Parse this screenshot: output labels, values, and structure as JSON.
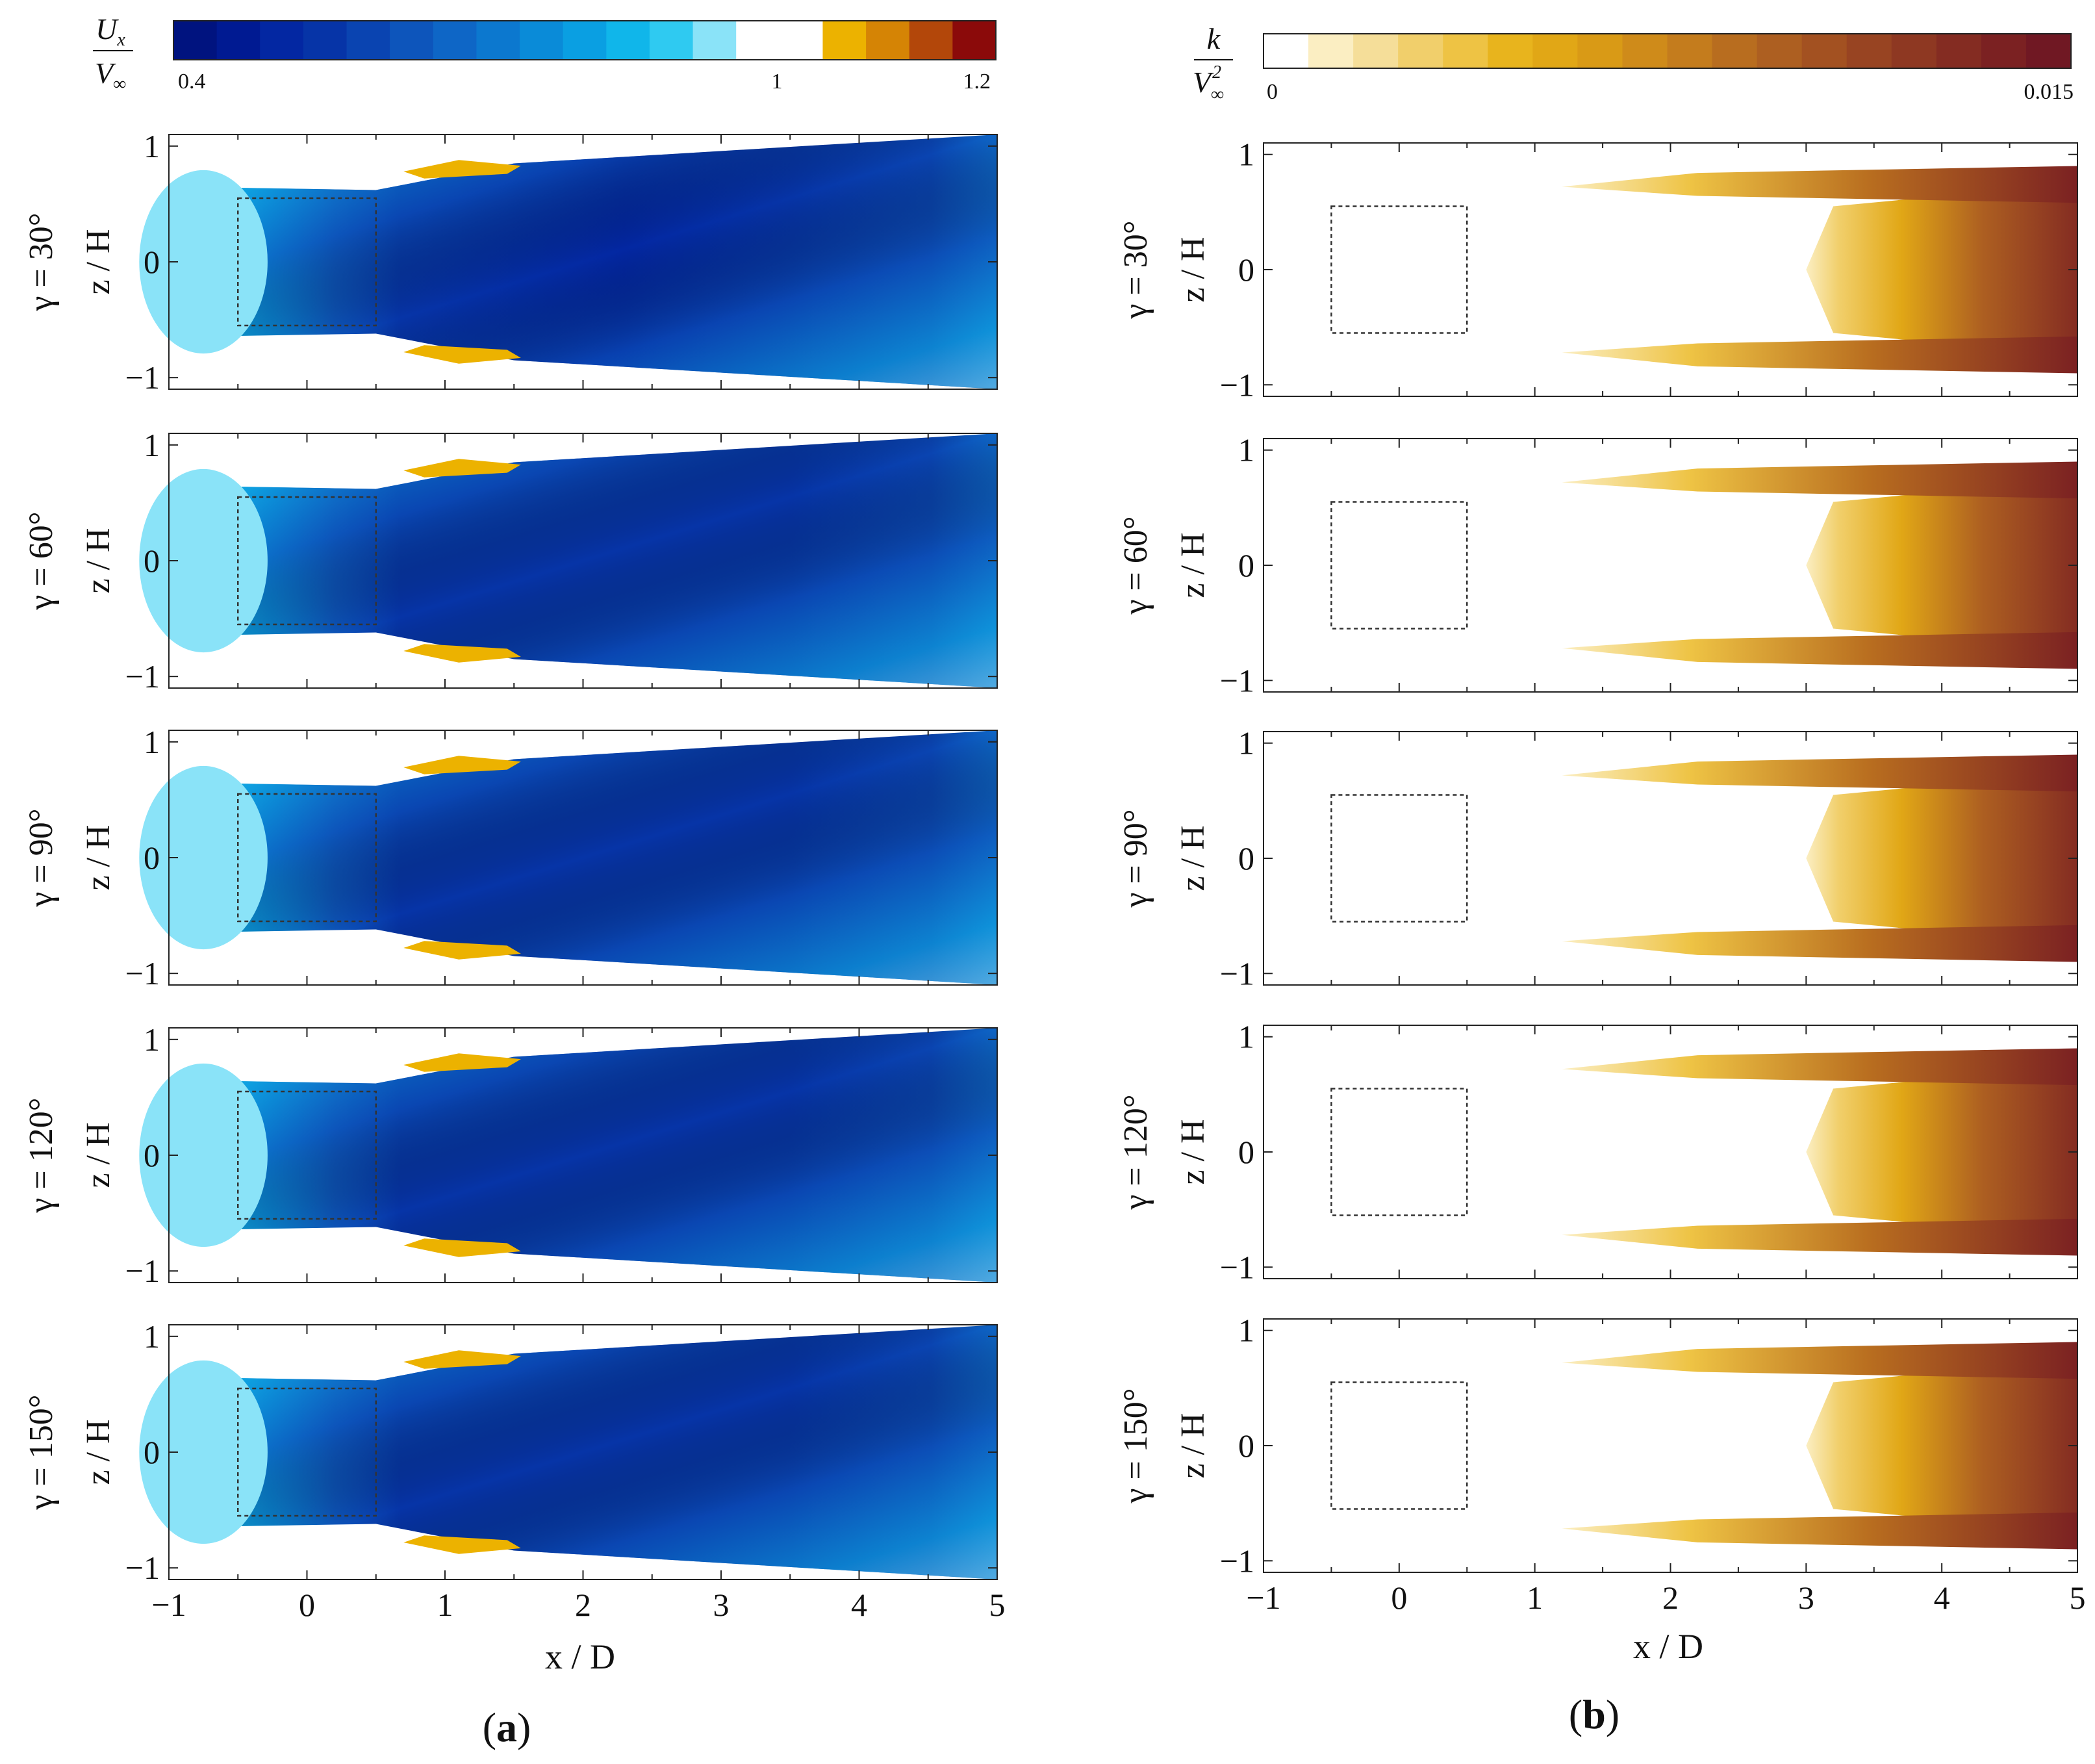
{
  "figure": {
    "panel_a_letter": "a",
    "panel_b_letter": "b",
    "open_paren": "(",
    "close_paren": ")"
  },
  "colorbars": {
    "a": {
      "num": "U",
      "num_sub": "x",
      "den": "V",
      "den_sub": "∞",
      "ticks": [
        "0.4",
        "1",
        "1.2"
      ],
      "colors": [
        "#00137f",
        "#001a92",
        "#0327a2",
        "#0634a7",
        "#0a44b1",
        "#0d55bb",
        "#0e66c6",
        "#0c78cf",
        "#0a8bd8",
        "#0a9fe2",
        "#10b6ea",
        "#2fcaf1",
        "#8ae3f8",
        "#ffffff",
        "#ffffff",
        "#ecb200",
        "#d58405",
        "#b3470a",
        "#8b0a0a"
      ]
    },
    "b": {
      "num": "k",
      "den": "V",
      "den_sup": "2",
      "den_sub": "∞",
      "ticks": [
        "0",
        "0.015"
      ],
      "colors": [
        "#ffffff",
        "#fbeec2",
        "#f5de99",
        "#f1cf6b",
        "#eec344",
        "#e8b41d",
        "#e1a716",
        "#d99a16",
        "#cf8b1a",
        "#c47c1d",
        "#b86d1f",
        "#ad5f21",
        "#a35121",
        "#984422",
        "#8e3822",
        "#842c22",
        "#7b2122",
        "#701823"
      ]
    }
  },
  "chart_data": [
    {
      "type": "heatmap",
      "panel": "a",
      "quantity": "Ux / V∞",
      "xlabel": "x / D",
      "ylabel": "z / H",
      "xlim": [
        -1,
        5
      ],
      "ylim": [
        -1.1,
        1.1
      ],
      "xticks": [
        "−1",
        "0",
        "1",
        "2",
        "3",
        "4",
        "5"
      ],
      "yticks": [
        "1",
        "0",
        "−1"
      ],
      "colorbar_range": [
        0.4,
        1.2
      ],
      "rows": [
        {
          "gamma": "γ = 30°",
          "core_min": 0.45
        },
        {
          "gamma": "γ = 60°",
          "core_min": 0.5
        },
        {
          "gamma": "γ = 90°",
          "core_min": 0.5
        },
        {
          "gamma": "γ = 120°",
          "core_min": 0.5
        },
        {
          "gamma": "γ = 150°",
          "core_min": 0.5
        }
      ],
      "object_box": {
        "x": [
          -0.5,
          0.5
        ],
        "z": [
          -0.55,
          0.55
        ]
      }
    },
    {
      "type": "heatmap",
      "panel": "b",
      "quantity": "k / V∞²",
      "xlabel": "x / D",
      "ylabel": "z / H",
      "xlim": [
        -1,
        5
      ],
      "ylim": [
        -1.1,
        1.1
      ],
      "xticks": [
        "−1",
        "0",
        "1",
        "2",
        "3",
        "4",
        "5"
      ],
      "yticks": [
        "1",
        "0",
        "−1"
      ],
      "colorbar_range": [
        0,
        0.015
      ],
      "rows": [
        {
          "gamma": "γ = 30°"
        },
        {
          "gamma": "γ = 60°"
        },
        {
          "gamma": "γ = 90°"
        },
        {
          "gamma": "γ = 120°"
        },
        {
          "gamma": "γ = 150°"
        }
      ],
      "object_box": {
        "x": [
          -0.5,
          0.5
        ],
        "z": [
          -0.55,
          0.55
        ]
      }
    }
  ]
}
